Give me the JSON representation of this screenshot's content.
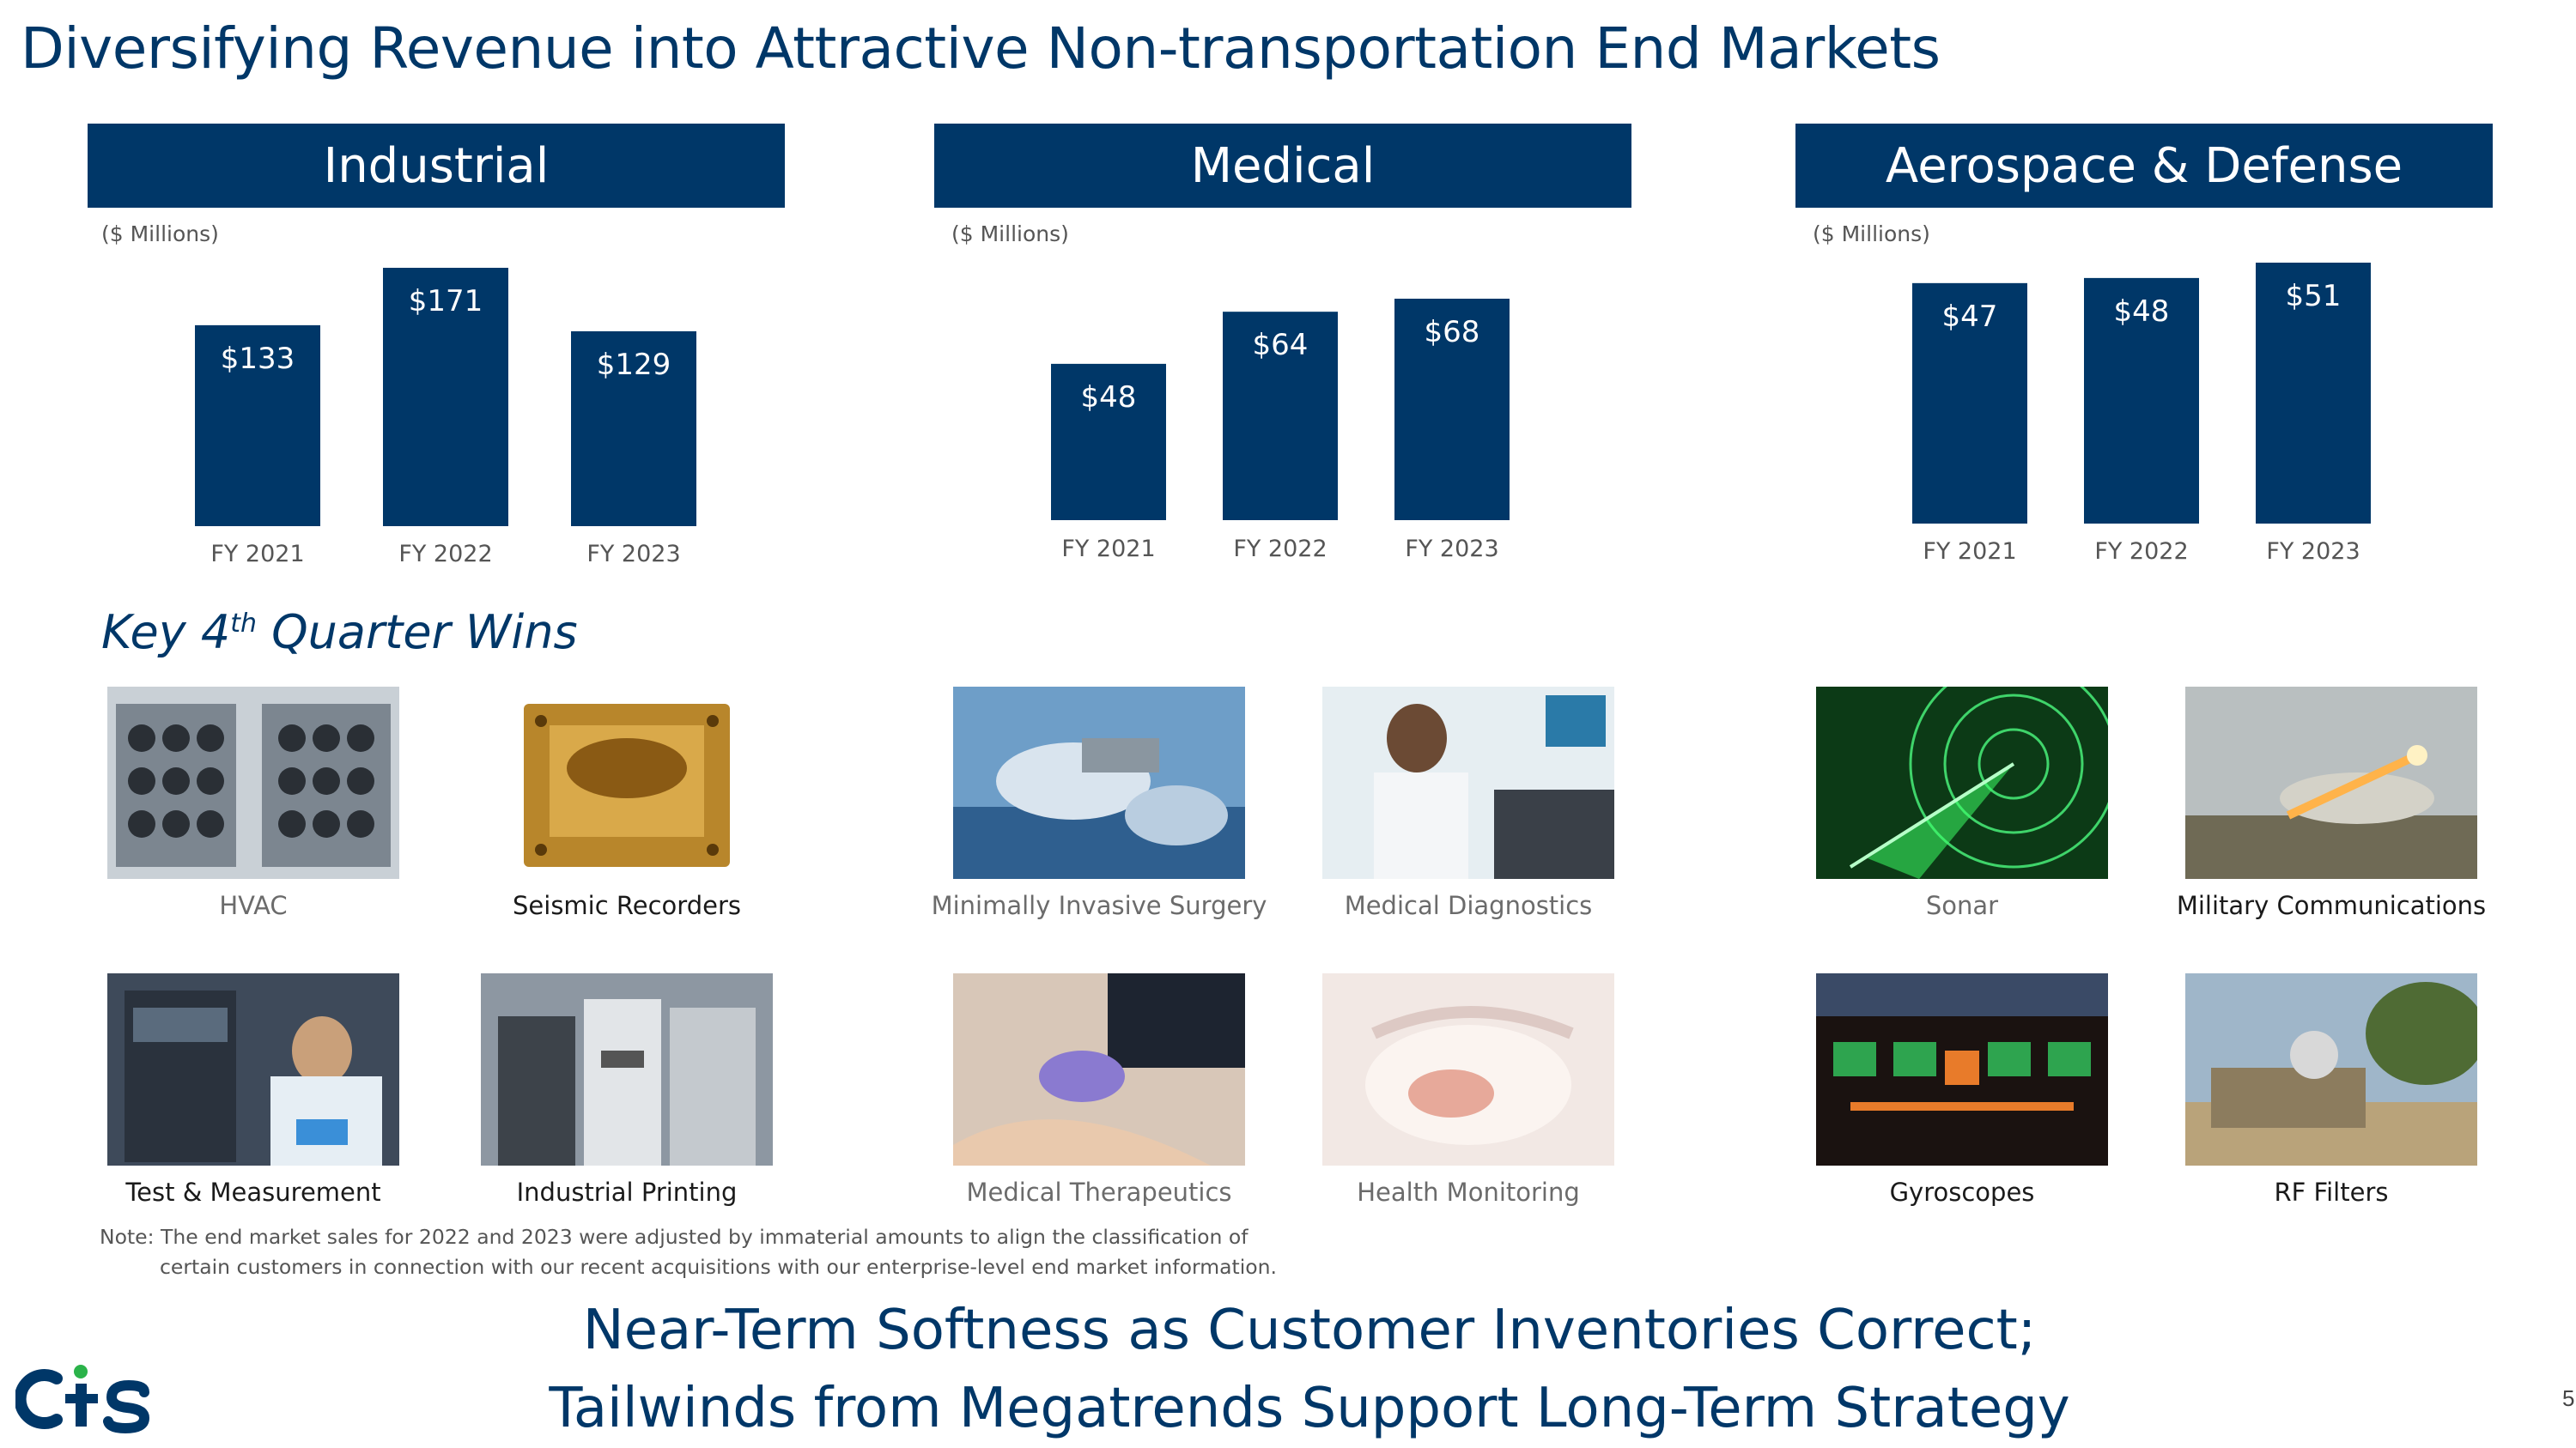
{
  "page_title": "Diversifying Revenue into Attractive Non-transportation End Markets",
  "colors": {
    "brand_navy": "#003768",
    "logo_green": "#2bb34a"
  },
  "chart_data": [
    {
      "type": "bar",
      "title": "Industrial",
      "units": "($ Millions)",
      "categories": [
        "FY 2021",
        "FY 2022",
        "FY 2023"
      ],
      "values": [
        133,
        171,
        129
      ],
      "labels": [
        "$133",
        "$171",
        "$129"
      ],
      "ylim": [
        0,
        171
      ]
    },
    {
      "type": "bar",
      "title": "Medical",
      "units": "($ Millions)",
      "categories": [
        "FY 2021",
        "FY 2022",
        "FY 2023"
      ],
      "values": [
        48,
        64,
        68
      ],
      "labels": [
        "$48",
        "$64",
        "$68"
      ],
      "ylim": [
        0,
        68
      ]
    },
    {
      "type": "bar",
      "title": "Aerospace & Defense",
      "units": "($ Millions)",
      "categories": [
        "FY 2021",
        "FY 2022",
        "FY 2023"
      ],
      "values": [
        47,
        48,
        51
      ],
      "labels": [
        "$47",
        "$48",
        "$51"
      ],
      "ylim": [
        0,
        51
      ]
    }
  ],
  "wins": {
    "title_pre": "Key 4",
    "title_sup": "th",
    "title_post": " Quarter Wins",
    "items": [
      {
        "label": "HVAC",
        "icon": "hvac-image"
      },
      {
        "label": "Seismic Recorders",
        "icon": "seismic-recorder-image"
      },
      {
        "label": "Minimally Invasive Surgery",
        "icon": "surgery-image"
      },
      {
        "label": "Medical Diagnostics",
        "icon": "diagnostics-image"
      },
      {
        "label": "Sonar",
        "icon": "sonar-image"
      },
      {
        "label": "Military Communications",
        "icon": "rocket-launch-image"
      },
      {
        "label": "Test & Measurement",
        "icon": "lab-image"
      },
      {
        "label": "Industrial Printing",
        "icon": "printing-press-image"
      },
      {
        "label": "Medical Therapeutics",
        "icon": "ultrasound-image"
      },
      {
        "label": "Health Monitoring",
        "icon": "incubator-image"
      },
      {
        "label": "Gyroscopes",
        "icon": "cockpit-image"
      },
      {
        "label": "RF Filters",
        "icon": "field-antenna-image"
      }
    ]
  },
  "note": {
    "line1": "Note: The end market sales for 2022 and 2023 were adjusted by immaterial amounts to align the classification of",
    "line2": "certain customers in connection with our recent acquisitions with our enterprise-level end market information."
  },
  "tagline": {
    "line1": "Near-Term Softness as Customer Inventories Correct;",
    "line2": "Tailwinds from Megatrends Support Long-Term Strategy"
  },
  "logo_text": "CTS",
  "page_number": "5"
}
